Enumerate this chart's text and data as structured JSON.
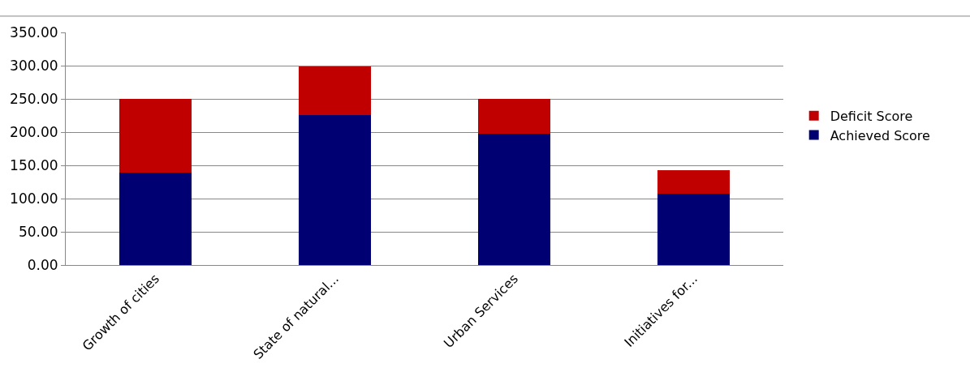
{
  "chart_data": {
    "type": "bar",
    "stacked": true,
    "categories": [
      "Growth of cities",
      "State of natural...",
      "Urban Services",
      "Initiatives for..."
    ],
    "series": [
      {
        "name": "Achieved Score",
        "color": "#000073",
        "values": [
          139,
          226,
          197,
          107
        ]
      },
      {
        "name": "Deficit Score",
        "color": "#c00000",
        "values": [
          111,
          73,
          53,
          36
        ]
      }
    ],
    "ylim": [
      0,
      350
    ],
    "yticks": [
      {
        "value": 0,
        "label": "0.00"
      },
      {
        "value": 50,
        "label": "50.00"
      },
      {
        "value": 100,
        "label": "100.00"
      },
      {
        "value": 150,
        "label": "150.00"
      },
      {
        "value": 200,
        "label": "200.00"
      },
      {
        "value": 250,
        "label": "250.00"
      },
      {
        "value": 300,
        "label": "300.00"
      },
      {
        "value": 350,
        "label": "350.00"
      }
    ],
    "grid": "y",
    "legend": "right"
  }
}
